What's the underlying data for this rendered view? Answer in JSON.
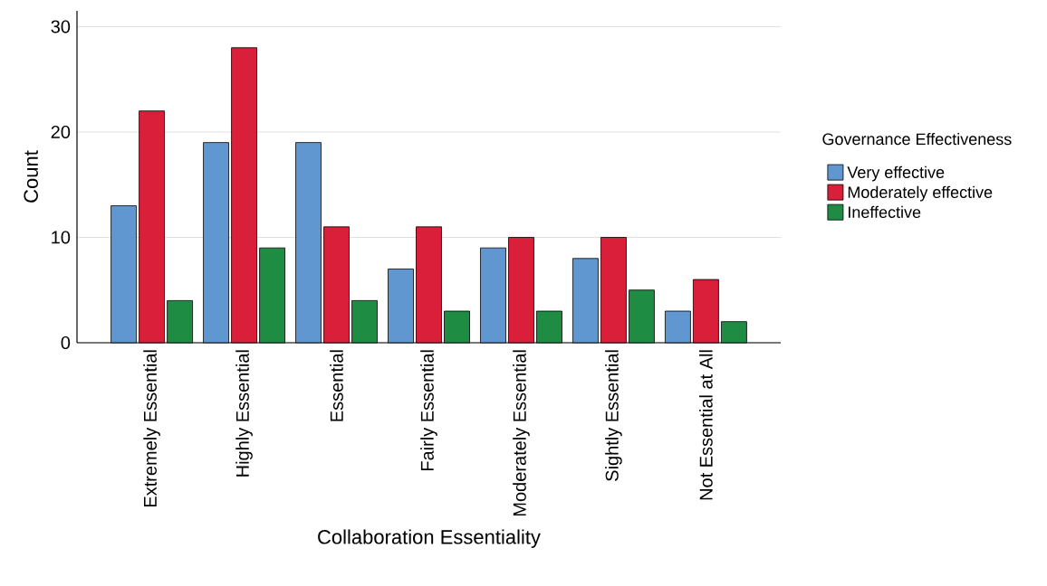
{
  "chart_data": {
    "type": "bar",
    "xlabel": "Collaboration Essentiality",
    "ylabel": "Count",
    "legend_title": "Governance Effectiveness",
    "categories": [
      "Extremely Essential",
      "Highly Essential",
      "Essential",
      "Fairly Essential",
      "Moderately Essential",
      "Sightly Essential",
      "Not Essential at All"
    ],
    "series": [
      {
        "name": "Very effective",
        "color": "#6097d0",
        "values": [
          13,
          19,
          19,
          7,
          9,
          8,
          3
        ]
      },
      {
        "name": "Moderately effective",
        "color": "#d91f3a",
        "values": [
          22,
          28,
          11,
          11,
          10,
          10,
          6
        ]
      },
      {
        "name": "Ineffective",
        "color": "#1f8c44",
        "values": [
          4,
          9,
          4,
          3,
          3,
          5,
          2
        ]
      }
    ],
    "ylim": [
      0,
      31.5
    ],
    "yticks": [
      0,
      10,
      20,
      30
    ],
    "grid": "y",
    "legend": "right",
    "tick_labels": "y"
  }
}
